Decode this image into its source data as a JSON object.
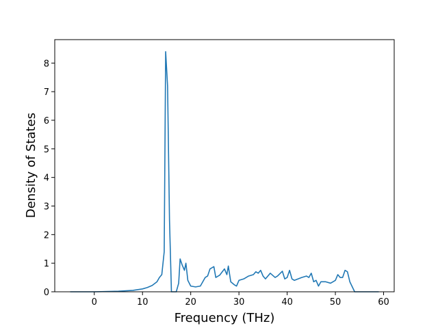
{
  "chart_data": {
    "type": "line",
    "x_label": "Frequency (THz)",
    "y_label": "Density of States",
    "color": "#1f77b4",
    "x": [
      -5,
      0,
      5,
      8,
      10,
      11,
      12,
      13,
      13.5,
      14,
      14.5,
      14.8,
      15.2,
      15.6,
      16,
      17,
      17.5,
      17.8,
      18.2,
      18.7,
      19,
      19.4,
      20,
      21,
      22,
      23,
      23.5,
      24,
      24.8,
      25.2,
      26,
      27,
      27.5,
      27.8,
      28.3,
      29,
      29.5,
      30,
      31,
      32,
      33,
      33.5,
      34,
      34.5,
      35,
      35.5,
      36.5,
      37.5,
      38,
      39,
      39.5,
      40,
      40.5,
      41,
      41.5,
      43,
      44,
      44.5,
      45,
      45.5,
      46,
      46.5,
      47,
      48,
      49,
      50,
      50.5,
      51,
      51.5,
      52,
      52.5,
      53,
      54,
      59
    ],
    "values": [
      0,
      0,
      0.02,
      0.05,
      0.1,
      0.15,
      0.22,
      0.35,
      0.5,
      0.6,
      1.4,
      8.4,
      7.2,
      2.5,
      0,
      0,
      0.3,
      1.15,
      0.95,
      0.75,
      1.0,
      0.4,
      0.2,
      0.17,
      0.2,
      0.5,
      0.55,
      0.8,
      0.88,
      0.5,
      0.58,
      0.8,
      0.6,
      0.9,
      0.35,
      0.25,
      0.2,
      0.4,
      0.45,
      0.55,
      0.6,
      0.7,
      0.65,
      0.75,
      0.55,
      0.45,
      0.65,
      0.5,
      0.55,
      0.72,
      0.45,
      0.5,
      0.75,
      0.45,
      0.4,
      0.5,
      0.55,
      0.5,
      0.65,
      0.35,
      0.4,
      0.2,
      0.35,
      0.35,
      0.3,
      0.4,
      0.6,
      0.5,
      0.5,
      0.75,
      0.7,
      0.35,
      0,
      0
    ],
    "xlim": [
      -8.2,
      62.2
    ],
    "ylim": [
      0,
      8.82
    ],
    "xticks": [
      0,
      10,
      20,
      30,
      40,
      50,
      60
    ],
    "yticks": [
      0,
      1,
      2,
      3,
      4,
      5,
      6,
      7,
      8
    ]
  }
}
